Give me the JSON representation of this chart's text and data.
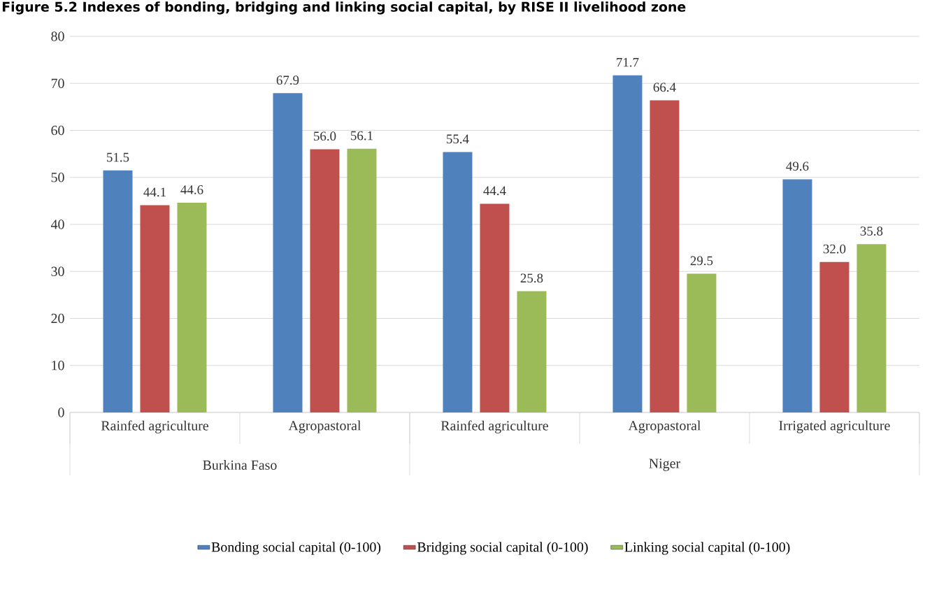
{
  "chart_data": {
    "type": "bar",
    "title": "Figure 5.2 Indexes of bonding, bridging and linking social capital, by RISE II livelihood zone",
    "categories": [
      "Rainfed agriculture",
      "Agropastoral",
      "Rainfed agriculture",
      "Agropastoral",
      "Irrigated agriculture"
    ],
    "annotations": [
      "Burkina Faso",
      "Niger"
    ],
    "series": [
      {
        "name": "Bonding social capital (0-100)",
        "color": "#4f81bd",
        "values": [
          51.5,
          67.9,
          55.4,
          71.7,
          49.6
        ],
        "value_labels": [
          "51.5",
          "67.9",
          "55.4",
          "71.7",
          "49.6"
        ]
      },
      {
        "name": "Bridging social capital (0-100)",
        "color": "#c0504d",
        "values": [
          44.1,
          56.0,
          44.4,
          66.4,
          32.0
        ],
        "value_labels": [
          "44.1",
          "56.0",
          "44.4",
          "66.4",
          "32.0"
        ]
      },
      {
        "name": "Linking social capital (0-100)",
        "color": "#9bbb59",
        "values": [
          44.6,
          56.1,
          25.8,
          29.5,
          35.8
        ],
        "value_labels": [
          "44.6",
          "56.1",
          "25.8",
          "29.5",
          "35.8"
        ]
      }
    ],
    "ylim": [
      0,
      80
    ],
    "yticks": [
      0,
      10,
      20,
      30,
      40,
      50,
      60,
      70,
      80
    ],
    "grid": "y",
    "legend": "bottom"
  }
}
